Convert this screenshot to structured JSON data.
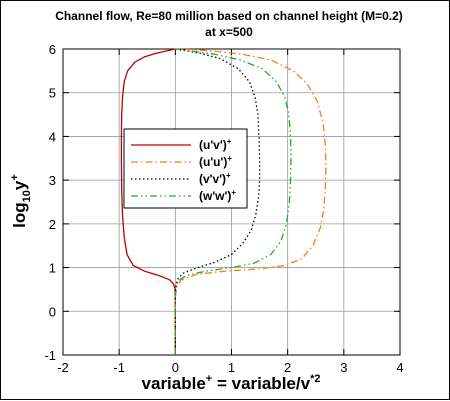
{
  "chart_data": {
    "type": "line",
    "title": "Channel flow, Re=80 million based on channel height (M=0.2)",
    "subtitle": "at x=500",
    "xlabel": "variable",
    "xlabel_sup": "+",
    "xlabel_eq": " = variable/v",
    "xlabel_eq_sup": "*2",
    "ylabel_main": "log",
    "ylabel_sub": "10",
    "ylabel_var": "y",
    "ylabel_sup": "+",
    "xlim": [
      -2,
      4
    ],
    "ylim": [
      -1,
      6
    ],
    "xticks": [
      "-2",
      "-1",
      "0",
      "1",
      "2",
      "3",
      "4"
    ],
    "yticks": [
      "-1",
      "0",
      "1",
      "2",
      "3",
      "4",
      "5",
      "6"
    ],
    "grid": true,
    "legend_position": "center-left",
    "series": [
      {
        "name": "(u'v')",
        "name_sup": "+",
        "color": "#c00000",
        "dash": "solid",
        "x": [
          0,
          0,
          -0.005,
          -0.03,
          -0.1,
          -0.3,
          -0.55,
          -0.75,
          -0.86,
          -0.91,
          -0.94,
          -0.955,
          -0.96,
          -0.96,
          -0.955,
          -0.94,
          -0.91,
          -0.85,
          -0.72,
          -0.55,
          -0.35,
          -0.1,
          0
        ],
        "y": [
          -1,
          0.3,
          0.5,
          0.62,
          0.72,
          0.82,
          0.92,
          1.05,
          1.3,
          1.7,
          2.2,
          2.8,
          3.4,
          4.0,
          4.5,
          4.9,
          5.25,
          5.5,
          5.7,
          5.82,
          5.9,
          5.97,
          6.0
        ]
      },
      {
        "name": "(u'u')",
        "name_sup": "+",
        "color": "#ff7a1a",
        "dash": "dashdot",
        "x": [
          0,
          0,
          0.02,
          0.1,
          0.4,
          0.9,
          1.5,
          1.95,
          2.25,
          2.45,
          2.58,
          2.64,
          2.67,
          2.68,
          2.67,
          2.63,
          2.53,
          2.35,
          2.1,
          1.7,
          1.2,
          0.6,
          0.2,
          0
        ],
        "y": [
          -1,
          0.3,
          0.55,
          0.72,
          0.85,
          0.92,
          0.97,
          1.05,
          1.2,
          1.5,
          1.9,
          2.3,
          2.8,
          3.3,
          3.8,
          4.3,
          4.8,
          5.2,
          5.5,
          5.75,
          5.88,
          5.96,
          5.99,
          6.0
        ]
      },
      {
        "name": "(v'v')",
        "name_sup": "+",
        "color": "#000000",
        "dash": "dotted",
        "x": [
          0,
          0,
          0.01,
          0.05,
          0.15,
          0.4,
          0.7,
          1.0,
          1.2,
          1.35,
          1.43,
          1.48,
          1.5,
          1.5,
          1.49,
          1.47,
          1.42,
          1.32,
          1.12,
          0.8,
          0.45,
          0.15,
          0
        ],
        "y": [
          -1,
          0.4,
          0.6,
          0.75,
          0.88,
          1.0,
          1.12,
          1.3,
          1.55,
          1.85,
          2.2,
          2.6,
          3.0,
          3.5,
          4.0,
          4.5,
          4.9,
          5.25,
          5.55,
          5.78,
          5.9,
          5.97,
          6.0
        ]
      },
      {
        "name": "(w'w')",
        "name_sup": "+",
        "color": "#22aa22",
        "dash": "dashdotdot",
        "x": [
          0,
          0,
          0.01,
          0.05,
          0.2,
          0.55,
          1.0,
          1.4,
          1.7,
          1.88,
          1.98,
          2.03,
          2.05,
          2.06,
          2.05,
          2.02,
          1.95,
          1.8,
          1.55,
          1.15,
          0.7,
          0.3,
          0.08,
          0
        ],
        "y": [
          -1,
          0.3,
          0.55,
          0.7,
          0.82,
          0.92,
          1.0,
          1.1,
          1.3,
          1.6,
          2.0,
          2.5,
          3.0,
          3.5,
          4.0,
          4.5,
          4.9,
          5.25,
          5.55,
          5.75,
          5.88,
          5.95,
          5.99,
          6.0
        ]
      }
    ]
  }
}
